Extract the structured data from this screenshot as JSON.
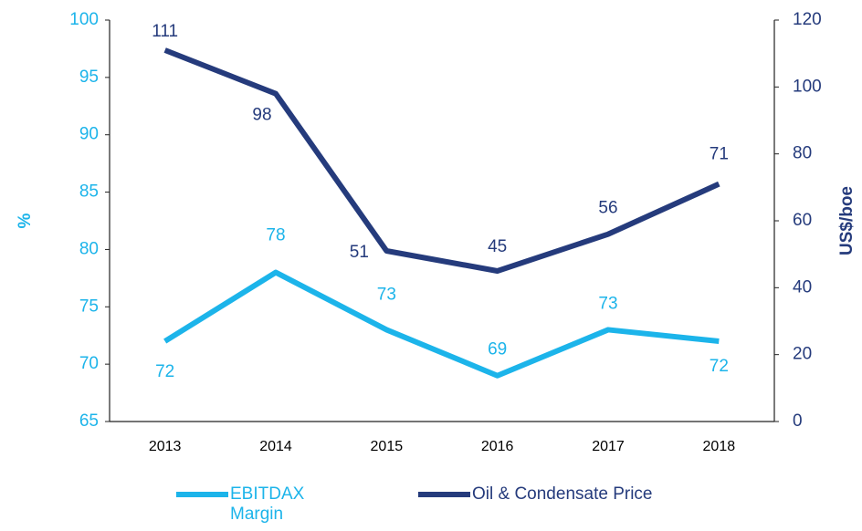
{
  "chart_data": {
    "type": "line",
    "categories": [
      "2013",
      "2014",
      "2015",
      "2016",
      "2017",
      "2018"
    ],
    "series": [
      {
        "name": "EBITDAX Margin",
        "color": "#1cb4ea",
        "axis": "y",
        "values": [
          72,
          78,
          73,
          69,
          73,
          72
        ]
      },
      {
        "name": "Oil & Condensate Price",
        "color": "#253b7c",
        "axis": "y2",
        "values": [
          111,
          98,
          51,
          45,
          56,
          71
        ]
      }
    ],
    "ylabel": "%",
    "y2label": "US$/boe",
    "ylim": [
      65,
      100
    ],
    "yticks": [
      65,
      70,
      75,
      80,
      85,
      90,
      95,
      100
    ],
    "y2lim": [
      0,
      120
    ],
    "y2ticks": [
      0,
      20,
      40,
      60,
      80,
      100,
      120
    ],
    "legend": "bottom",
    "grid": false
  }
}
